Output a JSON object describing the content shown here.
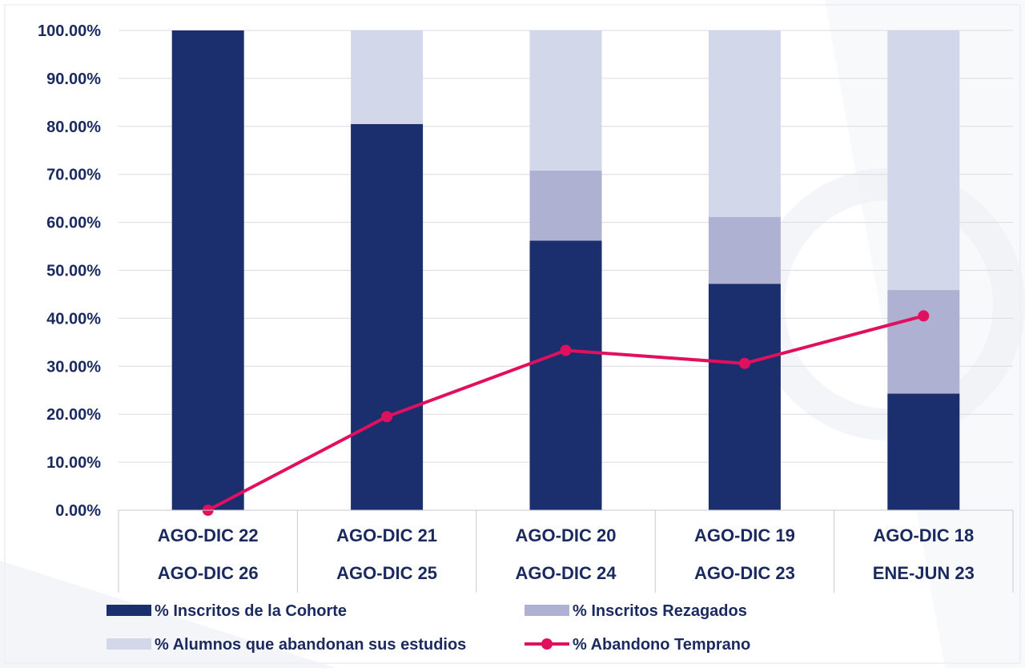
{
  "colors": {
    "cohorte": "#1b2f6e",
    "rezagados": "#afb1d2",
    "abandonan": "#d2d8ea",
    "abandono_temprano": "#e0105e",
    "text": "#1b2a5e",
    "grid": "#d9dbe3",
    "background_texture": "#eceef3"
  },
  "chart_data": {
    "type": "bar",
    "stacked": true,
    "title": "",
    "xlabel": "",
    "ylabel": "",
    "ylim": [
      0,
      100
    ],
    "y_ticks": [
      "0.00%",
      "10.00%",
      "20.00%",
      "30.00%",
      "40.00%",
      "50.00%",
      "60.00%",
      "70.00%",
      "80.00%",
      "90.00%",
      "100.00%"
    ],
    "categories": [
      {
        "top": "AGO-DIC 22",
        "bottom": "AGO-DIC 26"
      },
      {
        "top": "AGO-DIC 21",
        "bottom": "AGO-DIC 25"
      },
      {
        "top": "AGO-DIC 20",
        "bottom": "AGO-DIC 24"
      },
      {
        "top": "AGO-DIC 19",
        "bottom": "AGO-DIC 23"
      },
      {
        "top": "AGO-DIC 18",
        "bottom": "ENE-JUN 23"
      }
    ],
    "series": [
      {
        "name": "% Inscritos de la Cohorte",
        "type": "bar",
        "color_key": "cohorte",
        "values": [
          100,
          80.5,
          56.2,
          47.2,
          24.3
        ]
      },
      {
        "name": "% Inscritos Rezagados",
        "type": "bar",
        "color_key": "rezagados",
        "values": [
          0,
          0,
          14.6,
          13.9,
          21.6
        ]
      },
      {
        "name": "% Alumnos que abandonan sus estudios",
        "type": "bar",
        "color_key": "abandonan",
        "values": [
          0,
          19.5,
          29.2,
          38.9,
          54.1
        ]
      },
      {
        "name": "% Abandono Temprano",
        "type": "line",
        "color_key": "abandono_temprano",
        "values": [
          0,
          19.5,
          33.3,
          30.6,
          40.5
        ]
      }
    ],
    "grid": true,
    "legend_position": "bottom"
  }
}
